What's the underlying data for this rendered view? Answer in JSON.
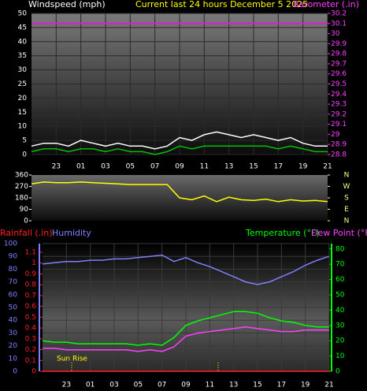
{
  "chart_data": [
    {
      "type": "line",
      "title": "Current last 24 hours December 5 2025",
      "y_label": "Windspeed (mph)",
      "y2_label": "Barometer (.in)",
      "x": [
        0,
        1,
        2,
        3,
        4,
        5,
        6,
        7,
        8,
        9,
        10,
        11,
        12,
        13,
        14,
        15,
        16,
        17,
        18,
        19,
        20,
        21,
        22,
        23,
        24
      ],
      "xlim": [
        0,
        24
      ],
      "xticks": [
        {
          "value": 2,
          "label": "23"
        },
        {
          "value": 4,
          "label": "01"
        },
        {
          "value": 6,
          "label": "03"
        },
        {
          "value": 8,
          "label": "05"
        },
        {
          "value": 10,
          "label": "07"
        },
        {
          "value": 12,
          "label": "09"
        },
        {
          "value": 14,
          "label": "11"
        },
        {
          "value": 16,
          "label": "13"
        },
        {
          "value": 18,
          "label": "15"
        },
        {
          "value": 20,
          "label": "17"
        },
        {
          "value": 22,
          "label": "19"
        },
        {
          "value": 24,
          "label": "21"
        }
      ],
      "ylim": [
        0,
        50
      ],
      "yticks": [
        0,
        5,
        10,
        15,
        20,
        25,
        30,
        35,
        40,
        45,
        50
      ],
      "y2lim": [
        28.8,
        30.2
      ],
      "y2ticks": [
        28.8,
        28.9,
        29,
        29.1,
        29.2,
        29.3,
        29.4,
        29.5,
        29.6,
        29.7,
        29.8,
        29.9,
        30,
        30.1,
        30.2
      ],
      "grid": true,
      "series": [
        {
          "color": "#ffffff",
          "values": [
            3,
            4,
            4,
            3,
            5,
            4,
            3,
            4,
            3,
            3,
            2,
            3,
            6,
            5,
            7,
            8,
            7,
            6,
            7,
            6,
            5,
            6,
            4,
            3,
            3
          ]
        },
        {
          "color": "#00c000",
          "values": [
            1,
            2,
            2,
            1,
            2,
            2,
            1,
            2,
            1,
            1,
            0,
            1,
            3,
            2,
            3,
            3,
            3,
            3,
            3,
            3,
            2,
            3,
            2,
            1,
            1
          ]
        },
        {
          "color": "#ff00ff",
          "axis": "y2",
          "values": [
            30.1,
            30.1,
            30.1,
            30.1,
            30.1,
            30.1,
            30.1,
            30.1,
            30.1,
            30.1,
            30.1,
            30.1,
            30.1,
            30.1,
            30.1,
            30.1,
            30.1,
            30.1,
            30.1,
            30.1,
            30.1,
            30.1,
            30.1,
            30.1,
            30.1
          ]
        }
      ]
    },
    {
      "type": "line",
      "x": [
        0,
        1,
        2,
        3,
        4,
        5,
        6,
        7,
        8,
        9,
        10,
        11,
        12,
        13,
        14,
        15,
        16,
        17,
        18,
        19,
        20,
        21,
        22,
        23,
        24
      ],
      "xlim": [
        0,
        24
      ],
      "ylim": [
        0,
        360
      ],
      "yticks": [
        0,
        90,
        180,
        270,
        360
      ],
      "y2lim": [
        0,
        360
      ],
      "y2ticks": [
        {
          "value": 0,
          "label": "N"
        },
        {
          "value": 90,
          "label": "E"
        },
        {
          "value": 180,
          "label": "S"
        },
        {
          "value": 270,
          "label": "W"
        },
        {
          "value": 360,
          "label": "N"
        }
      ],
      "series": [
        {
          "color": "#ffff00",
          "values": [
            290,
            305,
            300,
            300,
            305,
            300,
            295,
            290,
            285,
            285,
            285,
            285,
            180,
            165,
            195,
            150,
            185,
            165,
            160,
            170,
            150,
            165,
            155,
            160,
            150
          ]
        }
      ]
    },
    {
      "type": "line",
      "annotation": "Sun Rise",
      "x": [
        0,
        1,
        2,
        3,
        4,
        5,
        6,
        7,
        8,
        9,
        10,
        11,
        12,
        13,
        14,
        15,
        16,
        17,
        18,
        19,
        20,
        21,
        22,
        23,
        24
      ],
      "xlim": [
        0,
        24
      ],
      "xticks": [
        {
          "value": 2,
          "label": "23"
        },
        {
          "value": 4,
          "label": "01"
        },
        {
          "value": 6,
          "label": "03"
        },
        {
          "value": 8,
          "label": "05"
        },
        {
          "value": 10,
          "label": "07"
        },
        {
          "value": 12,
          "label": "09"
        },
        {
          "value": 14,
          "label": "11"
        },
        {
          "value": 16,
          "label": "13"
        },
        {
          "value": 18,
          "label": "15"
        },
        {
          "value": 20,
          "label": "17"
        },
        {
          "value": 22,
          "label": "19"
        },
        {
          "value": 24,
          "label": "21"
        }
      ],
      "ylim": [
        0,
        100
      ],
      "yticks": [
        0,
        10,
        20,
        30,
        40,
        50,
        60,
        70,
        80,
        90,
        100
      ],
      "y2lim": [
        0,
        83.5
      ],
      "y2ticks": [
        0,
        10,
        20,
        30,
        40,
        50,
        60,
        70,
        80
      ],
      "y3lim": [
        0,
        1.18
      ],
      "y3ticks": [
        0,
        0.1,
        0.2,
        0.3,
        0.4,
        0.5,
        0.6,
        0.7,
        0.8,
        0.9,
        1,
        1.1
      ],
      "grid": true,
      "series": [
        {
          "name": "Rainfall (.in)",
          "color": "#ff2020",
          "axis": "y3",
          "values": [
            0,
            0,
            0,
            0,
            0,
            0,
            0,
            0,
            0,
            0,
            0,
            0,
            0,
            0,
            0,
            0,
            0,
            0,
            0,
            0,
            0,
            0,
            0,
            0,
            0
          ]
        },
        {
          "name": "Humidity",
          "color": "#8080ff",
          "values": [
            84,
            85,
            86,
            86,
            87,
            87,
            88,
            88,
            89,
            90,
            91,
            86,
            89,
            85,
            82,
            78,
            74,
            70,
            68,
            70,
            74,
            78,
            83,
            87,
            90
          ]
        },
        {
          "name": "Temperature (°F)",
          "color": "#00ff00",
          "axis": "y2",
          "values": [
            20,
            19,
            19,
            18,
            18,
            18,
            18,
            18,
            17,
            18,
            17,
            22,
            30,
            33,
            35,
            37,
            39,
            39,
            38,
            35,
            33,
            32,
            30,
            29,
            29
          ]
        },
        {
          "name": "Dew Point (°F)",
          "color": "#ff40ff",
          "axis": "y2",
          "values": [
            15,
            15,
            14,
            14,
            14,
            14,
            14,
            14,
            13,
            14,
            13,
            16,
            23,
            25,
            26,
            27,
            28,
            29,
            28,
            27,
            26,
            26,
            27,
            27,
            27
          ]
        }
      ]
    }
  ]
}
